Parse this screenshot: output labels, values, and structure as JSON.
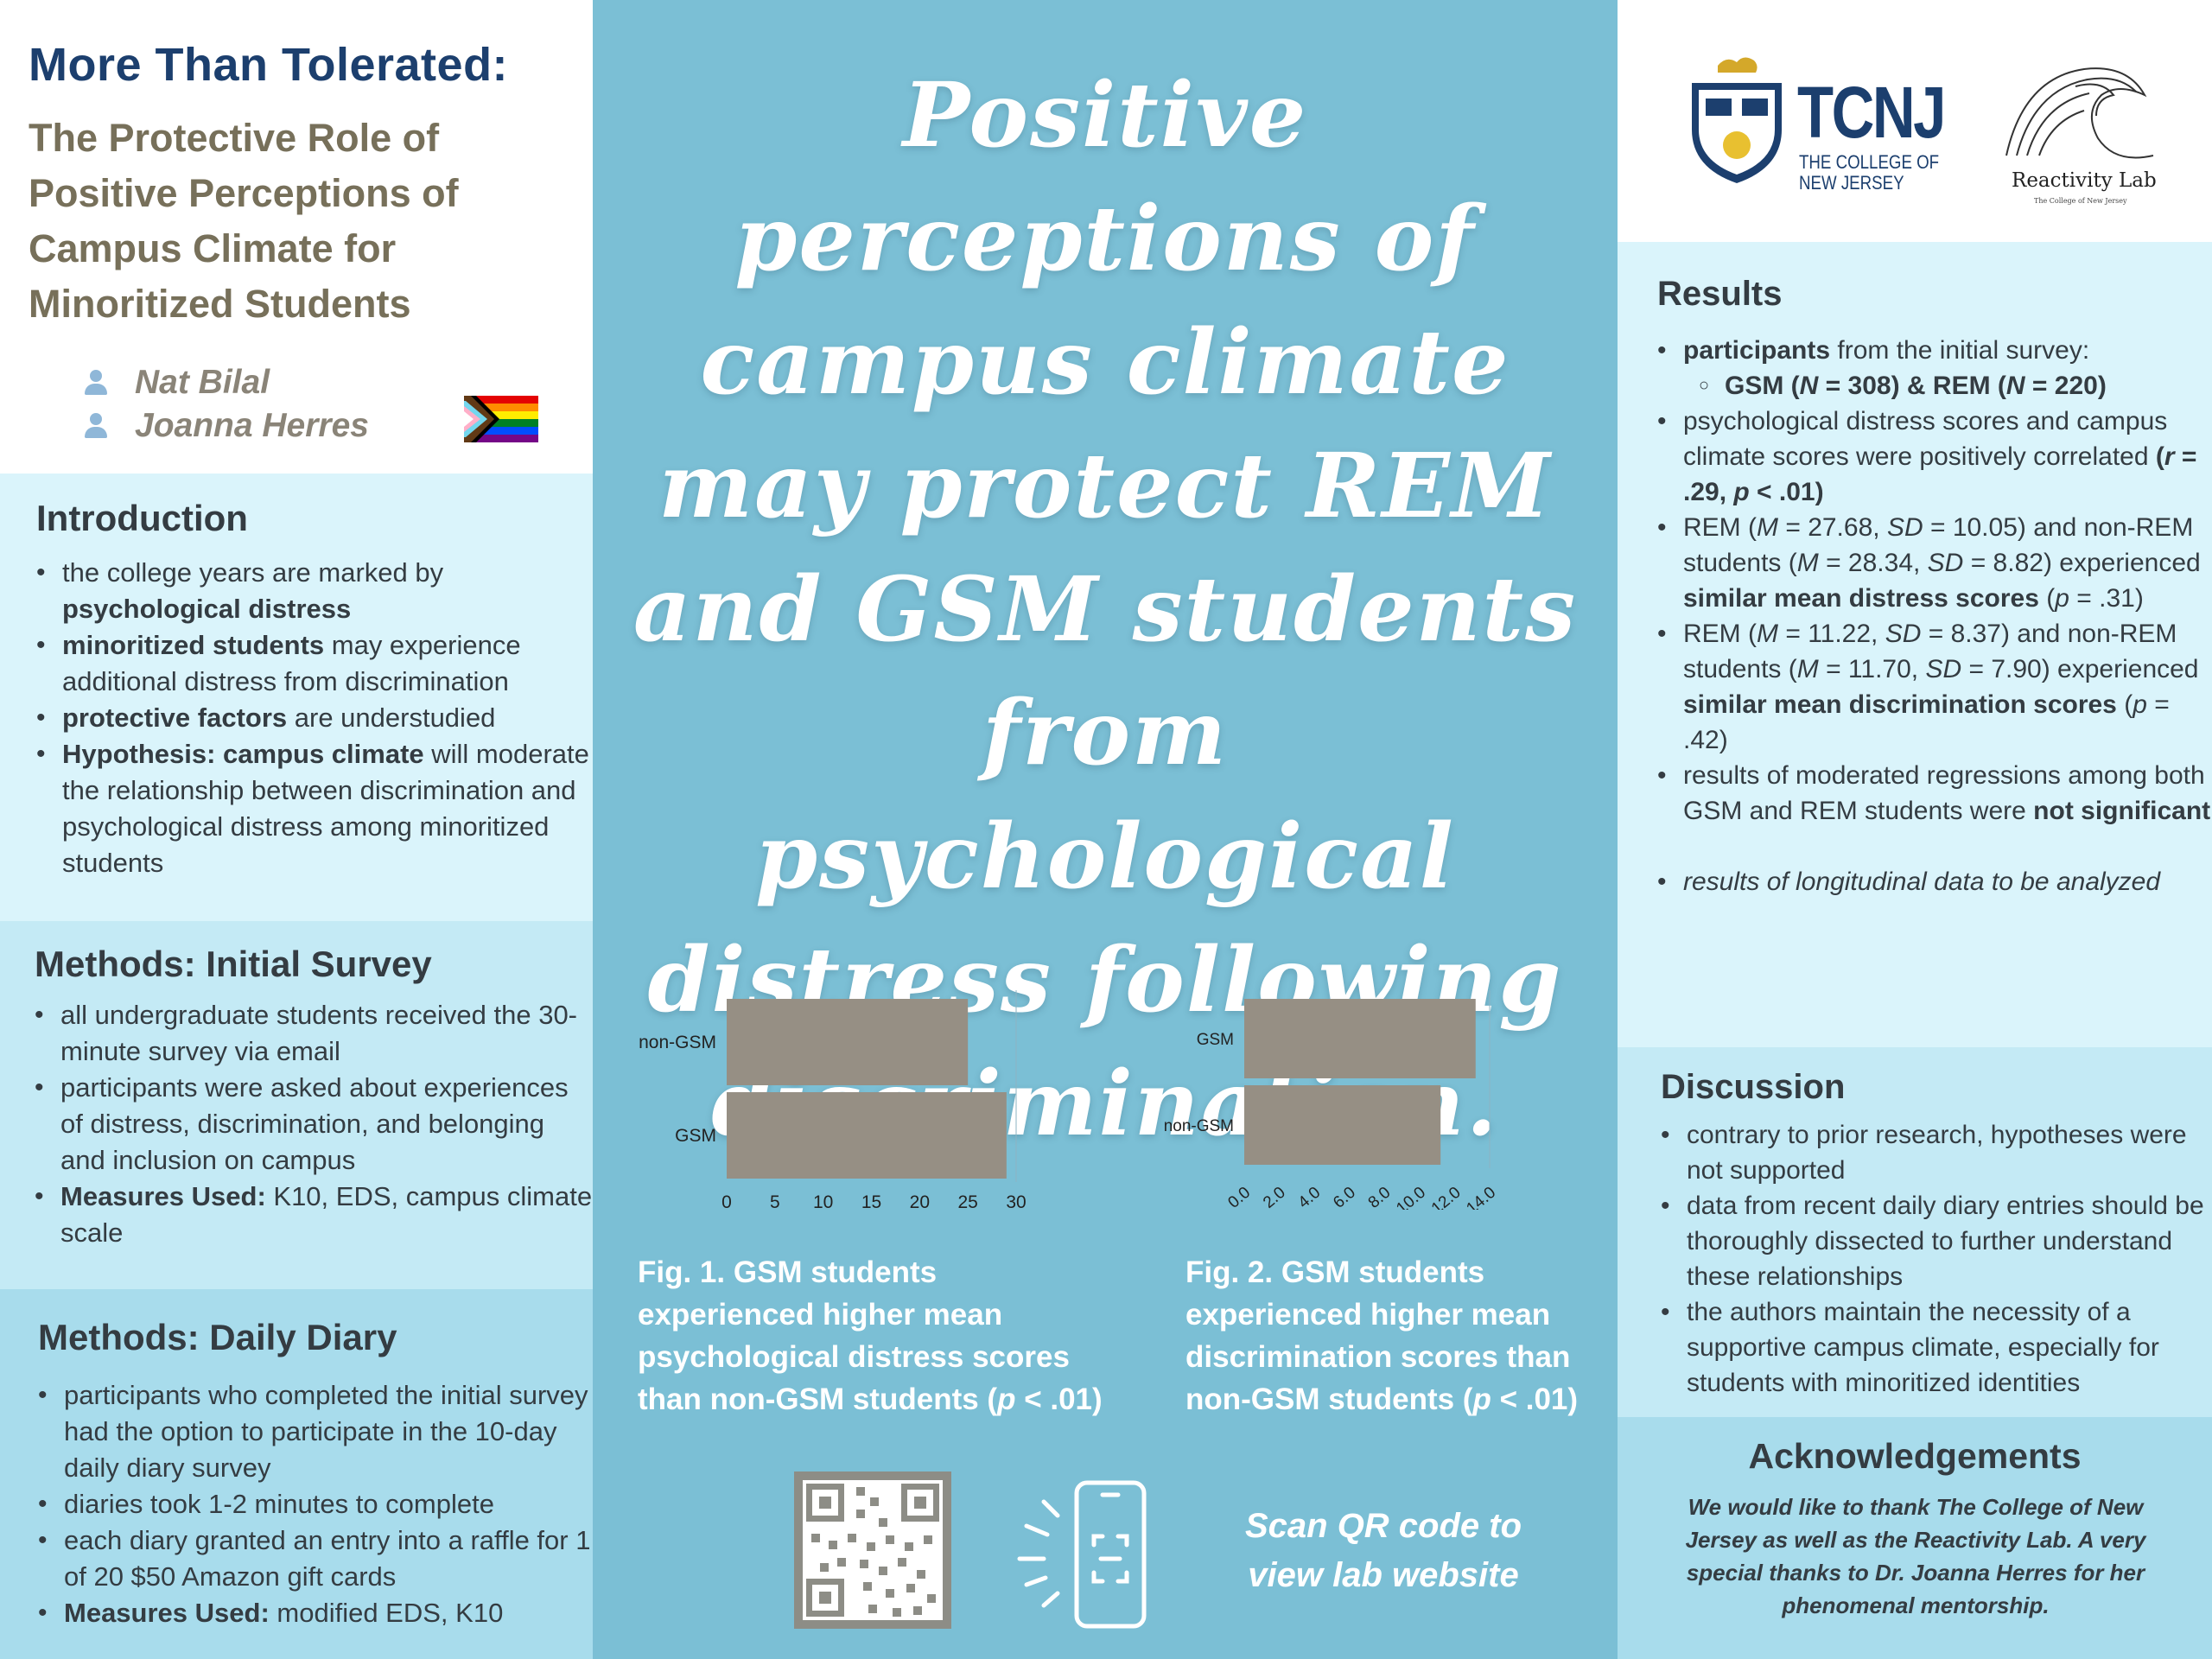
{
  "title": {
    "main": "More Than Tolerated:",
    "subtitle_lines": [
      "The Protective Role of",
      "Positive Perceptions of",
      "Campus Climate for",
      "Minoritized Students"
    ]
  },
  "authors": [
    "Nat Bilal",
    "Joanna Herres"
  ],
  "pride_flag_colors": [
    "#e40303",
    "#ff8c00",
    "#ffed00",
    "#008026",
    "#004dff",
    "#750787"
  ],
  "introduction": {
    "heading": "Introduction",
    "items": [
      {
        "plain1": "the college years are marked by ",
        "bold": "psychological distress",
        "plain2": ""
      },
      {
        "plain1": "",
        "bold": "minoritized students",
        "plain2": " may experience additional distress from discrimination"
      },
      {
        "plain1": "",
        "bold": "protective factors",
        "plain2": " are understudied"
      },
      {
        "plain1": "",
        "bold": "Hypothesis: campus climate",
        "plain2": " will moderate the relationship between discrimination and psychological distress among minoritized students"
      }
    ]
  },
  "methods_initial": {
    "heading": "Methods: Initial Survey",
    "items": [
      "all undergraduate students received the 30-minute survey via email",
      "participants were asked about experiences of distress, discrimination, and belonging and inclusion on campus"
    ],
    "measures_label": "Measures Used:",
    "measures_value": " K10, EDS, campus climate scale"
  },
  "methods_diary": {
    "heading": "Methods: Daily Diary",
    "items": [
      "participants who completed the initial survey had the option to participate in the  10-day daily diary survey",
      "diaries took 1-2 minutes to complete",
      "each diary granted an entry into a raffle for 1 of 20 $50 Amazon gift cards"
    ],
    "measures_label": "Measures Used:",
    "measures_value": " modified EDS, K10"
  },
  "headline": "Positive perceptions of campus climate may protect REM and GSM students from psychological distress following discrimination.",
  "chart_data": [
    {
      "type": "bar",
      "orientation": "horizontal",
      "categories": [
        "non-GSM",
        "GSM"
      ],
      "values": [
        25,
        29
      ],
      "xlim": [
        0,
        30
      ],
      "xticks": [
        "0",
        "5",
        "10",
        "15",
        "20",
        "25",
        "30"
      ],
      "bar_color": "#968f84",
      "title": "",
      "xlabel": "",
      "ylabel": ""
    },
    {
      "type": "bar",
      "orientation": "horizontal",
      "categories": [
        "GSM",
        "non-GSM"
      ],
      "values": [
        13.2,
        11.2
      ],
      "xlim": [
        0,
        14
      ],
      "xticks": [
        "0.0",
        "2.0",
        "4.0",
        "6.0",
        "8.0",
        "10.0",
        "12.0",
        "14.0"
      ],
      "bar_color": "#968f84",
      "title": "",
      "xlabel": "",
      "ylabel": ""
    }
  ],
  "fig1_caption": {
    "line1": "Fig. 1. GSM students",
    "line2": "experienced higher mean",
    "line3": "psychological distress scores",
    "line4_plain": "than non-GSM students (",
    "line4_italic": "p",
    "line4_end": " < .01)"
  },
  "fig2_caption": {
    "line1": "Fig. 2. GSM students",
    "line2": "experienced higher mean",
    "line3": "discrimination scores than",
    "line4_plain": "non-GSM students  (",
    "line4_italic": "p",
    "line4_end": " < .01)"
  },
  "qr_text": {
    "line1": "Scan QR code to",
    "line2": "view lab website"
  },
  "logos": {
    "tcnj_abbrev": "TCNJ",
    "tcnj_line1": "THE COLLEGE OF",
    "tcnj_line2": "NEW JERSEY",
    "lab_name": "Reactivity Lab",
    "lab_sub": "The College of New Jersey"
  },
  "results": {
    "heading": "Results",
    "participants_bold": "participants",
    "participants_rest": " from the initial survey:",
    "n_line": {
      "gsm": "GSM (",
      "n": "N",
      "gsm_val": " = 308) & REM (",
      "rem_val": " = 220)"
    },
    "corr_text": "psychological distress scores and campus climate scores were positively correlated ",
    "corr_stat": {
      "open": "(",
      "r": "r",
      "r_val": " = .29, ",
      "p": "p",
      "p_val": " < .01)"
    },
    "rem_distress": {
      "a": "REM (",
      "M": "M",
      "a_val": " = 27.68, ",
      "SD": "SD",
      "b_val": " = 10.05) and non-REM students (",
      "c_val": " = 28.34, ",
      "d_val": " = 8.82) experienced ",
      "bold": "similar mean distress scores",
      "p_open": " (",
      "p": "p",
      "p_val": " = .31)"
    },
    "rem_disc": {
      "a": "REM (",
      "M": "M",
      "a_val": " = 11.22, ",
      "SD": "SD",
      "b_val": " = 8.37) and non-REM students (",
      "c_val": " = 11.70, ",
      "d_val": " = 7.90) experienced ",
      "bold": "similar mean discrimination scores",
      "p_open": " (",
      "p": "p",
      "p_val": " = .42)"
    },
    "moderated_plain": "results of moderated regressions among both GSM and REM students were ",
    "moderated_bold": "not significant",
    "longitudinal": "results of longitudinal data to be analyzed"
  },
  "discussion": {
    "heading": "Discussion",
    "items": [
      "contrary to prior research, hypotheses were not supported",
      "data from recent daily diary entries should be thoroughly dissected to further understand these relationships",
      "the authors maintain the necessity of a supportive campus climate, especially for students with minoritized identities"
    ]
  },
  "acknowledgements": {
    "heading": "Acknowledgements",
    "body": "We would like to thank The College of New Jersey as well as the Reactivity Lab. A very special thanks to Dr. Joanna Herres for her phenomenal mentorship."
  }
}
